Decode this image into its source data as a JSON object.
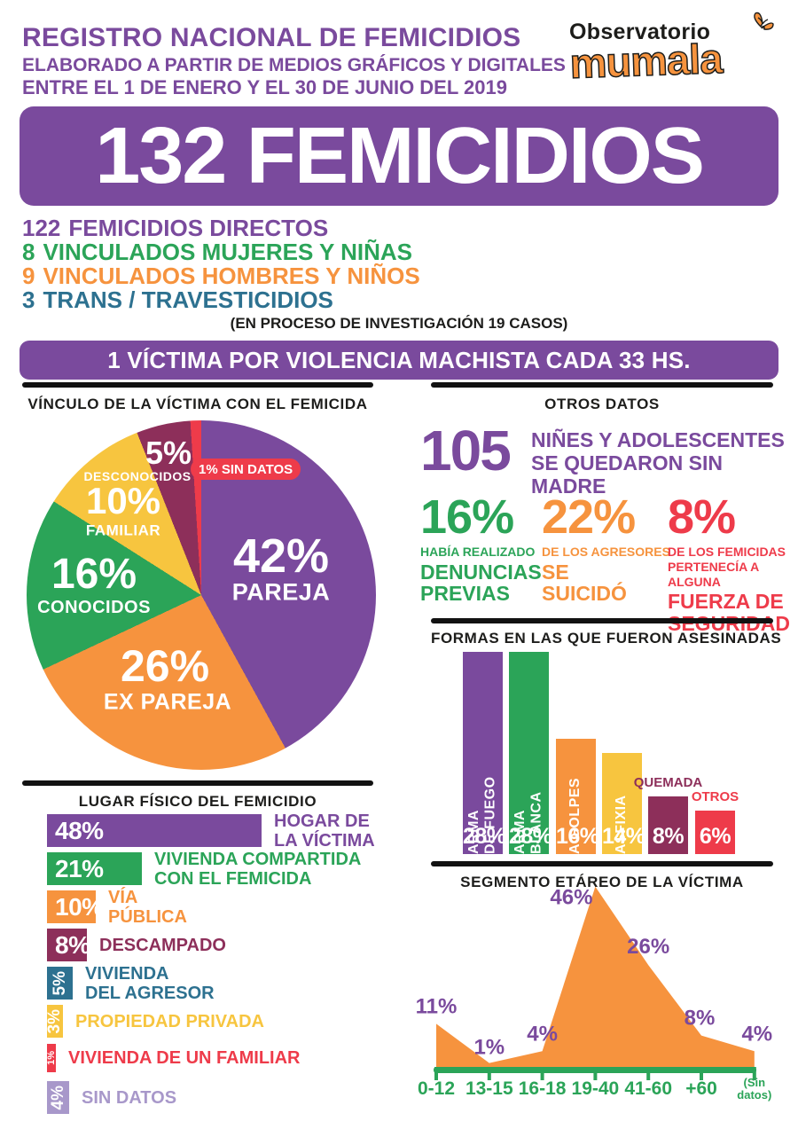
{
  "header": {
    "title": "REGISTRO NACIONAL DE FEMICIDIOS",
    "subtitle1": "ELABORADO A PARTIR DE MEDIOS GRÁFICOS Y DIGITALES",
    "subtitle2": "ENTRE EL 1 DE ENERO Y EL 30 DE JUNIO DEL 2019",
    "logo": {
      "org": "Observatorio",
      "name": "mumala"
    }
  },
  "banner": {
    "text": "132 FEMICIDIOS"
  },
  "totals": [
    {
      "value": "122",
      "label": "FEMICIDIOS DIRECTOS",
      "color": "#7a4a9d"
    },
    {
      "value": "8",
      "label": "VINCULADOS MUJERES Y NIÑAS",
      "color": "#2ba458"
    },
    {
      "value": "9",
      "label": "VINCULADOS HOMBRES Y NIÑOS",
      "color": "#f6933e"
    },
    {
      "value": "3",
      "label": "TRANS / TRAVESTICIDIOS",
      "color": "#2d7190"
    }
  ],
  "note": "(EN PROCESO DE INVESTIGACIÓN 19 CASOS)",
  "strip": "1 VÍCTIMA POR VIOLENCIA MACHISTA CADA 33 HS.",
  "otros_datos": {
    "title": "OTROS DATOS",
    "highlight": {
      "value": "105",
      "label": "NIÑES Y ADOLESCENTES\nSE QUEDARON SIN MADRE",
      "color": "#7a4a9d"
    },
    "facts": [
      {
        "value": "16%",
        "small": "HABÍA REALIZADO",
        "bold": "DENUNCIAS\nPREVIAS",
        "color": "#2ba458"
      },
      {
        "value": "22%",
        "small": "DE LOS AGRESORES",
        "bold": "SE\nSUICIDÓ",
        "color": "#f6933e"
      },
      {
        "value": "8%",
        "small": "DE LOS FEMICIDAS\nPERTENECÍA A\nALGUNA",
        "bold": "FUERZA DE\nSEGURIDAD",
        "color": "#ee3b4a"
      }
    ]
  },
  "chart_data": [
    {
      "type": "pie",
      "title": "VÍNCULO DE LA VÍCTIMA CON EL FEMICIDA",
      "start_angle_deg": 0,
      "direction": "clockwise",
      "slices": [
        {
          "label": "PAREJA",
          "value": 42,
          "color": "#7a4a9d"
        },
        {
          "label": "EX PAREJA",
          "value": 26,
          "color": "#f6933e"
        },
        {
          "label": "CONOCIDOS",
          "value": 16,
          "color": "#2ba458"
        },
        {
          "label": "FAMILIAR",
          "value": 10,
          "color": "#f7c53f"
        },
        {
          "label": "DESCONOCIDOS",
          "value": 5,
          "color": "#8d2f5a"
        },
        {
          "label": "SIN DATOS",
          "value": 1,
          "color": "#ee3b4a"
        }
      ]
    },
    {
      "type": "bar",
      "title": "FORMAS EN LAS QUE FUERON ASESINADAS",
      "categories": [
        "ARMA\nDE FUEGO",
        "ARMA\nBLANCA",
        "A GOLPES",
        "ASFIXIA",
        "QUEMADA",
        "OTROS"
      ],
      "values": [
        28,
        28,
        16,
        14,
        8,
        6
      ],
      "value_suffix": "%",
      "colors": [
        "#7a4a9d",
        "#2ba458",
        "#f6933e",
        "#f7c53f",
        "#8d2f5a",
        "#ee3b4a"
      ],
      "label_inside": [
        true,
        true,
        true,
        true,
        false,
        false
      ],
      "ylim": [
        0,
        30
      ]
    },
    {
      "type": "bar-horizontal",
      "title": "LUGAR FÍSICO DEL FEMICIDIO",
      "categories": [
        "HOGAR DE\nLA VÍCTIMA",
        "VIVIENDA COMPARTIDA\nCON EL FEMICIDA",
        "VÍA\nPÚBLICA",
        "DESCAMPADO",
        "VIVIENDA\nDEL AGRESOR",
        "PROPIEDAD PRIVADA",
        "VIVIENDA DE UN FAMILIAR",
        "SIN DATOS"
      ],
      "values": [
        48,
        21,
        10,
        8,
        5,
        3,
        1,
        4
      ],
      "value_suffix": "%",
      "colors": [
        "#7a4a9d",
        "#2ba458",
        "#f6933e",
        "#8d2f5a",
        "#2d7190",
        "#f7c53f",
        "#ee3b4a",
        "#a898ca"
      ],
      "xlim": [
        0,
        50
      ]
    },
    {
      "type": "area",
      "title": "SEGMENTO ETÁREO DE LA VÍCTIMA",
      "categories": [
        "0-12",
        "13-15",
        "16-18",
        "19-40",
        "41-60",
        "+60",
        "(Sin\ndatos)"
      ],
      "values": [
        11,
        1,
        4,
        46,
        26,
        8,
        4
      ],
      "value_suffix": "%",
      "fill_color": "#f6933e",
      "axis_color": "#2ba458",
      "label_color": "#7a4a9d",
      "ylim": [
        0,
        50
      ],
      "grid": false
    }
  ]
}
